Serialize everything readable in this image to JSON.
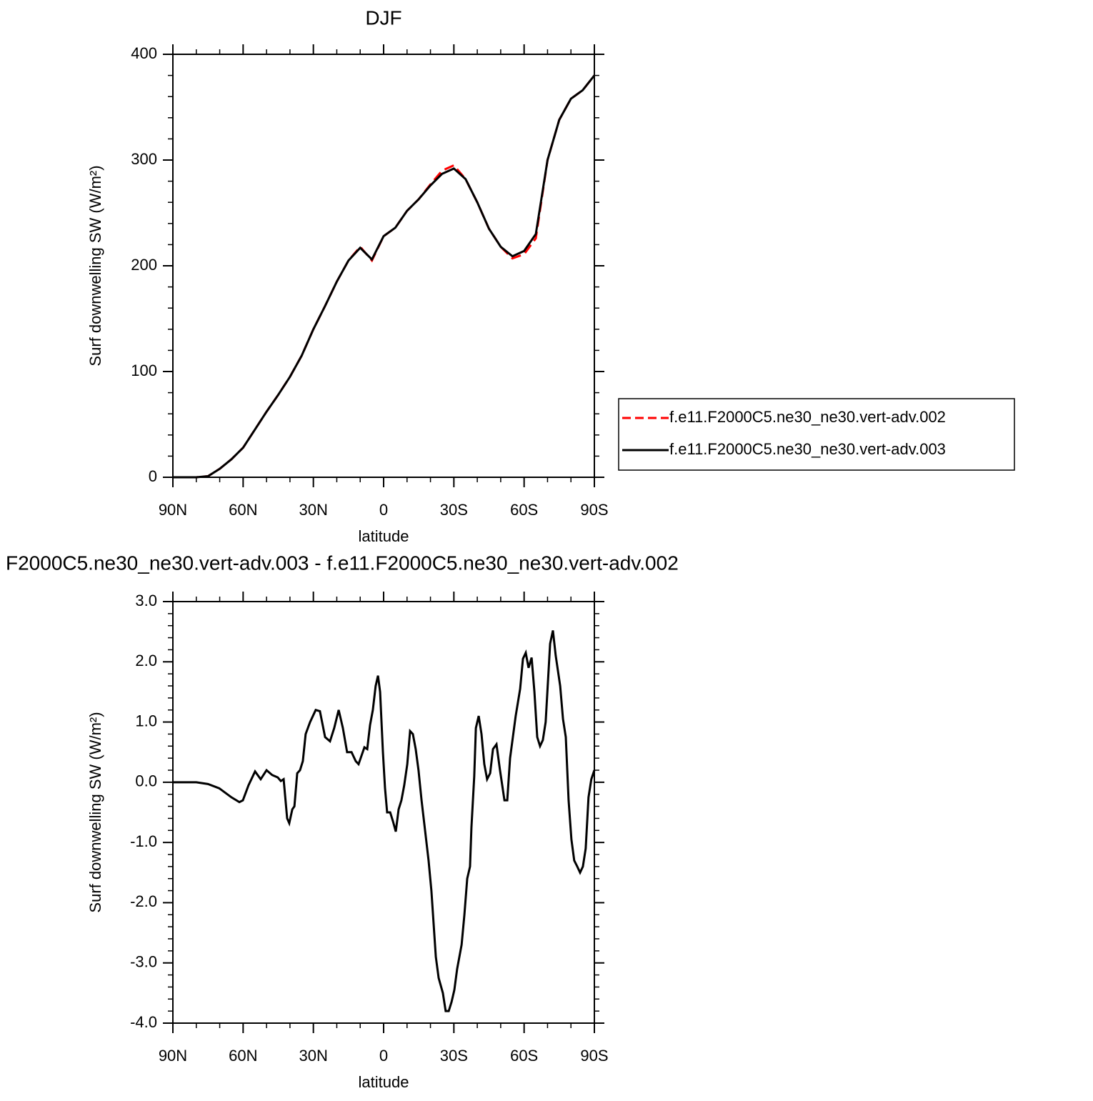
{
  "chart_data": [
    {
      "type": "line",
      "title": "DJF",
      "xlabel": "latitude",
      "ylabel": "Surf downwelling SW (W/m²)",
      "x": [
        90,
        85,
        80,
        75,
        70,
        65,
        60,
        55,
        50,
        45,
        40,
        35,
        30,
        25,
        20,
        15,
        10,
        5,
        0,
        -5,
        -10,
        -15,
        -20,
        -25,
        -30,
        -35,
        -40,
        -45,
        -50,
        -55,
        -60,
        -65,
        -70,
        -75,
        -80,
        -85,
        -90
      ],
      "series": [
        {
          "name": "f.e11.F2000C5.ne30_ne30.vert-adv.002",
          "color": "#ff0000",
          "line_style": "dashed",
          "values": [
            0,
            0,
            0,
            1,
            8,
            17,
            28,
            45,
            62,
            78,
            95,
            115,
            140,
            162,
            185,
            205,
            218,
            205,
            228,
            236,
            252,
            263,
            277,
            290,
            295,
            282,
            260,
            235,
            218,
            207,
            211,
            226,
            300,
            338,
            358,
            366,
            380
          ]
        },
        {
          "name": "f.e11.F2000C5.ne30_ne30.vert-adv.003",
          "color": "#000000",
          "line_style": "solid",
          "values": [
            0,
            0,
            0,
            1,
            8,
            17,
            28,
            45,
            62,
            78,
            95,
            115,
            140,
            162,
            185,
            205,
            217,
            206,
            228,
            236,
            252,
            263,
            276,
            287,
            292,
            282,
            260,
            235,
            218,
            209,
            214,
            230,
            300,
            338,
            358,
            366,
            380
          ]
        }
      ],
      "xlim": [
        90,
        -90
      ],
      "xticks": [
        {
          "value": 90,
          "label": "90N"
        },
        {
          "value": 60,
          "label": "60N"
        },
        {
          "value": 30,
          "label": "30N"
        },
        0,
        {
          "value": -30,
          "label": "30S"
        },
        {
          "value": -60,
          "label": "60S"
        },
        {
          "value": -90,
          "label": "90S"
        }
      ],
      "ylim": [
        0,
        400
      ],
      "yticks": [
        0,
        100,
        200,
        300,
        400
      ],
      "legend": "right"
    },
    {
      "type": "line",
      "title": "F2000C5.ne30_ne30.vert-adv.003 - f.e11.F2000C5.ne30_ne30.vert-adv.002",
      "xlabel": "latitude",
      "ylabel": "Surf downwelling SW (W/m²)",
      "x": [
        90,
        80,
        75,
        70.2,
        65,
        61.6,
        60.1,
        57.7,
        54.9,
        52.5,
        50,
        47.6,
        45.2,
        43.9,
        42.7,
        41.2,
        40.3,
        39,
        38.1,
        36.9,
        35.7,
        34.5,
        33.3,
        31.4,
        29,
        27.2,
        25,
        22.9,
        21.1,
        19.2,
        17.4,
        15.6,
        13.7,
        11.9,
        10.7,
        8.2,
        7,
        5.8,
        4.6,
        3.4,
        2.4,
        1.5,
        0.3,
        -0.6,
        -1.5,
        -2.8,
        -4,
        -5.2,
        -6.4,
        -7.6,
        -8.8,
        -10.1,
        -11.3,
        -12.5,
        -13.7,
        -14.9,
        -16.2,
        -17.4,
        -19.2,
        -20.4,
        -22.3,
        -23.5,
        -25.3,
        -26.5,
        -27.8,
        -29,
        -30.2,
        -31.4,
        -33.3,
        -34.5,
        -35.7,
        -36.9,
        -37.5,
        -38.7,
        -39.4,
        -40.6,
        -41.8,
        -43,
        -44.2,
        -45.5,
        -46.7,
        -48.2,
        -49.7,
        -51.6,
        -52.8,
        -54,
        -56.4,
        -58.3,
        -59.5,
        -60.7,
        -61.9,
        -63.2,
        -64.4,
        -65.6,
        -66.8,
        -68,
        -69.2,
        -71.1,
        -72.3,
        -73.5,
        -75.4,
        -76.6,
        -77.8,
        -79,
        -80.2,
        -81.4,
        -82.7,
        -83.9,
        -85.1,
        -86.3,
        -87.5,
        -88.7,
        -90
      ],
      "series": [
        {
          "color": "#000000",
          "line_style": "solid",
          "values": [
            0,
            0,
            -0.03,
            -0.1,
            -0.25,
            -0.33,
            -0.3,
            -0.05,
            0.18,
            0.05,
            0.2,
            0.12,
            0.08,
            0.02,
            0.05,
            -0.6,
            -0.68,
            -0.45,
            -0.4,
            0.15,
            0.2,
            0.35,
            0.8,
            1.0,
            1.2,
            1.18,
            0.75,
            0.68,
            0.9,
            1.2,
            0.9,
            0.5,
            0.5,
            0.35,
            0.3,
            0.58,
            0.55,
            0.95,
            1.2,
            1.6,
            1.77,
            1.5,
            0.5,
            -0.1,
            -0.5,
            -0.5,
            -0.65,
            -0.82,
            -0.45,
            -0.3,
            -0.05,
            0.3,
            0.85,
            0.8,
            0.55,
            0.2,
            -0.3,
            -0.7,
            -1.3,
            -1.8,
            -2.9,
            -3.25,
            -3.5,
            -3.8,
            -3.8,
            -3.65,
            -3.45,
            -3.1,
            -2.7,
            -2.2,
            -1.6,
            -1.4,
            -0.75,
            0.1,
            0.9,
            1.1,
            0.8,
            0.3,
            0.05,
            0.15,
            0.55,
            0.63,
            0.2,
            -0.3,
            -0.3,
            0.4,
            1.1,
            1.55,
            2.05,
            2.15,
            1.9,
            2.07,
            1.5,
            0.75,
            0.6,
            0.7,
            1.0,
            2.3,
            2.52,
            2.1,
            1.6,
            1.05,
            0.75,
            -0.3,
            -0.95,
            -1.3,
            -1.4,
            -1.5,
            -1.4,
            -1.1,
            -0.25,
            0.05,
            0.2
          ]
        }
      ],
      "xlim": [
        90,
        -90
      ],
      "xticks": [
        {
          "value": 90,
          "label": "90N"
        },
        {
          "value": 60,
          "label": "60N"
        },
        {
          "value": 30,
          "label": "30N"
        },
        0,
        {
          "value": -30,
          "label": "30S"
        },
        {
          "value": -60,
          "label": "60S"
        },
        {
          "value": -90,
          "label": "90S"
        }
      ],
      "ylim": [
        -4,
        3
      ],
      "yticks": [
        {
          "value": -4,
          "label": "-4.0"
        },
        {
          "value": -3,
          "label": "-3.0"
        },
        {
          "value": -2,
          "label": "-2.0"
        },
        {
          "value": -1,
          "label": "-1.0"
        },
        {
          "value": 0,
          "label": "0.0"
        },
        {
          "value": 1,
          "label": "1.0"
        },
        {
          "value": 2,
          "label": "2.0"
        },
        {
          "value": 3,
          "label": "3.0"
        }
      ]
    }
  ]
}
